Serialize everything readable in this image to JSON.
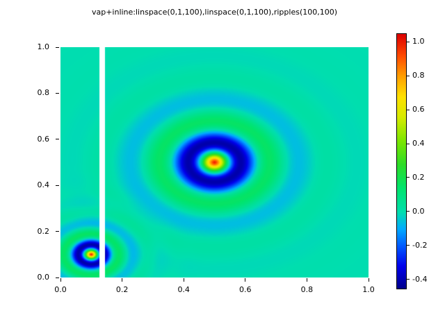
{
  "title": "vap+inline:linspace(0,1,100),linspace(0,1,100),ripples(100,100)",
  "axes": {
    "x_tick_labels": [
      "0.0",
      "0.2",
      "0.4",
      "0.6",
      "0.8",
      "1.0"
    ],
    "y_tick_labels": [
      "1.0",
      "0.8",
      "0.6",
      "0.4",
      "0.2",
      "0.0"
    ]
  },
  "colorbar": {
    "tick_labels": [
      "1.0",
      "0.8",
      "0.6",
      "0.4",
      "0.2",
      "0.0",
      "-0.2",
      "-0.4"
    ],
    "tick_values": [
      1.0,
      0.8,
      0.6,
      0.4,
      0.2,
      0.0,
      -0.2,
      -0.4
    ],
    "vmin": -0.45,
    "vmax": 1.05
  },
  "chart_data": {
    "type": "heatmap",
    "title": "vap+inline:linspace(0,1,100),linspace(0,1,100),ripples(100,100)",
    "xlabel": "",
    "ylabel": "",
    "x_range": [
      0,
      1
    ],
    "y_range": [
      0,
      1
    ],
    "grid_resolution": [
      100,
      100
    ],
    "zlim": [
      -0.45,
      1.05
    ],
    "function": "z(x,y) = sum_i amplitude_i * cos(r_i/wavelength_i) * exp(-r_i/decay_i), where r_i = distance from (x,y) to center_i",
    "ripples": [
      {
        "center": [
          0.5,
          0.5
        ],
        "wavelength": 0.03,
        "decay": 0.1,
        "amplitude": 1.0
      },
      {
        "center": [
          0.1,
          0.1
        ],
        "wavelength": 0.015,
        "decay": 0.05,
        "amplitude": 1.0
      }
    ],
    "masked_x_band": [
      0.127,
      0.145
    ],
    "colormap": "jet-like",
    "colormap_stops": [
      {
        "v": -0.45,
        "rgb": [
          0,
          0,
          140
        ]
      },
      {
        "v": -0.32,
        "rgb": [
          0,
          0,
          235
        ]
      },
      {
        "v": -0.2,
        "rgb": [
          0,
          90,
          255
        ]
      },
      {
        "v": -0.1,
        "rgb": [
          0,
          170,
          255
        ]
      },
      {
        "v": 0.0,
        "rgb": [
          0,
          222,
          175
        ]
      },
      {
        "v": 0.14,
        "rgb": [
          0,
          228,
          110
        ]
      },
      {
        "v": 0.28,
        "rgb": [
          45,
          220,
          40
        ]
      },
      {
        "v": 0.42,
        "rgb": [
          125,
          230,
          0
        ]
      },
      {
        "v": 0.56,
        "rgb": [
          215,
          235,
          0
        ]
      },
      {
        "v": 0.68,
        "rgb": [
          255,
          225,
          0
        ]
      },
      {
        "v": 0.8,
        "rgb": [
          255,
          160,
          0
        ]
      },
      {
        "v": 0.92,
        "rgb": [
          255,
          75,
          0
        ]
      },
      {
        "v": 1.05,
        "rgb": [
          220,
          0,
          0
        ]
      }
    ],
    "legend": "colorbar-right",
    "grid": false
  }
}
